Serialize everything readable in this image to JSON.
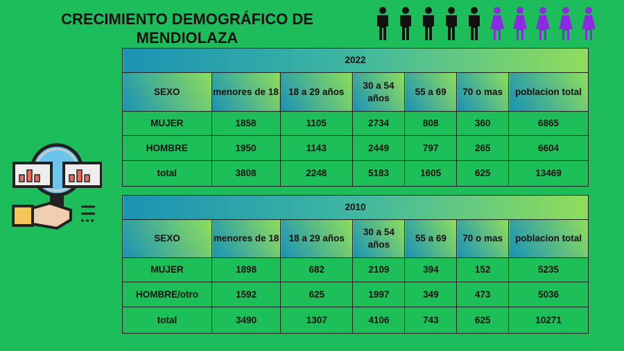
{
  "title": "CRECIMIENTO DEMOGRÁFICO DE MENDIOLAZA",
  "colors": {
    "background": "#1ebd5b",
    "male_icon": "#111111",
    "female_icon": "#8a2be2"
  },
  "people_icons": {
    "male_count": 5,
    "female_count": 5
  },
  "tables": [
    {
      "year": "2022",
      "headers": [
        "SEXO",
        "menores de 18",
        "18 a 29 años",
        "30 a 54 años",
        "55 a 69",
        "70 o mas",
        "poblacion total"
      ],
      "rows": [
        [
          "MUJER",
          "1858",
          "1105",
          "2734",
          "808",
          "360",
          "6865"
        ],
        [
          "HOMBRE",
          "1950",
          "1143",
          "2449",
          "797",
          "265",
          "6604"
        ],
        [
          "total",
          "3808",
          "2248",
          "5183",
          "1605",
          "625",
          "13469"
        ]
      ]
    },
    {
      "year": "2010",
      "headers": [
        "SEXO",
        "menores de 18",
        "18 a 29 años",
        "30 a 54 años",
        "55 a 69",
        "70 o mas",
        "poblacion total"
      ],
      "rows": [
        [
          "MUJER",
          "1898",
          "682",
          "2109",
          "394",
          "152",
          "5235"
        ],
        [
          "HOMBRE/otro",
          "1592",
          "625",
          "1997",
          "349",
          "473",
          "5036"
        ],
        [
          "total",
          "3490",
          "1307",
          "4106",
          "743",
          "625",
          "10271"
        ]
      ]
    }
  ]
}
